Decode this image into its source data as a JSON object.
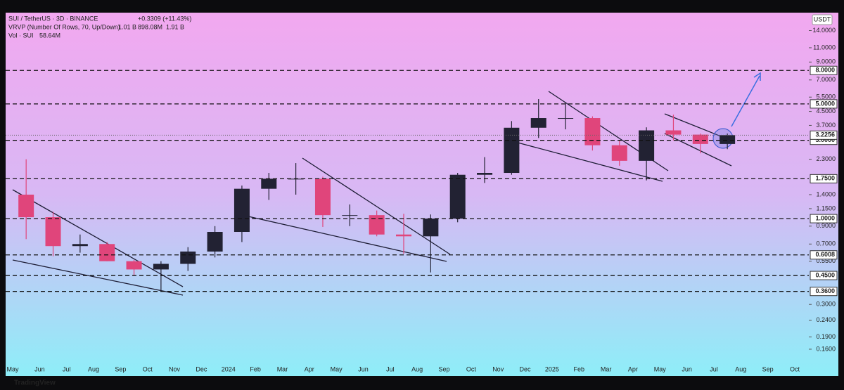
{
  "chart_data": {
    "type": "candlestick",
    "title": "SUI / TetherUS · 3D · BINANCE",
    "change": "+0.3309 (+11.43%)",
    "indicator": "VRVP (Number Of Rows, 70, Up/Down)",
    "indicator_values": [
      "1.01 B",
      "898.08M",
      "1.91 B"
    ],
    "volume_label": "Vol · SUI",
    "volume_value": "58.64M",
    "currency": "USDT",
    "footer": "TradingView",
    "log_scale": true,
    "up_color": "#222233",
    "down_color": "#e0457b",
    "categories": [
      "May",
      "Jun",
      "Jul",
      "Aug",
      "Sep",
      "Oct",
      "Nov",
      "Dec",
      "2024",
      "Feb",
      "Mar",
      "Apr",
      "May",
      "Jun",
      "Jul",
      "Aug",
      "Sep",
      "Oct",
      "Nov",
      "Dec",
      "2025",
      "Feb",
      "Mar",
      "Apr",
      "May",
      "Jun",
      "Jul",
      "Aug",
      "Sep",
      "Oct"
    ],
    "open": [
      1.4,
      1.02,
      0.68,
      0.7,
      0.55,
      0.49,
      0.53,
      0.63,
      0.83,
      1.52,
      1.75,
      1.75,
      1.05,
      1.05,
      0.8,
      0.78,
      1.0,
      1.85,
      1.9,
      3.58,
      4.1,
      4.1,
      2.8,
      2.25,
      3.45,
      3.25,
      2.85,
      null,
      null,
      null
    ],
    "high": [
      2.3,
      1.1,
      0.8,
      0.72,
      0.56,
      0.55,
      0.67,
      0.9,
      1.59,
      1.9,
      2.18,
      1.8,
      1.22,
      1.12,
      1.07,
      1.06,
      1.9,
      2.37,
      3.93,
      5.35,
      5.1,
      4.2,
      3.0,
      3.6,
      4.3,
      3.3,
      3.3,
      null,
      null,
      null
    ],
    "low": [
      0.75,
      0.59,
      0.62,
      0.55,
      0.45,
      0.36,
      0.48,
      0.58,
      0.72,
      1.3,
      1.4,
      0.89,
      0.9,
      0.78,
      0.61,
      0.47,
      0.95,
      1.65,
      1.85,
      3.1,
      3.5,
      2.6,
      2.1,
      1.71,
      3.0,
      2.5,
      2.65,
      null,
      null,
      null
    ],
    "close": [
      1.02,
      0.68,
      0.7,
      0.55,
      0.49,
      0.53,
      0.63,
      0.83,
      1.52,
      1.75,
      1.75,
      1.05,
      1.05,
      0.8,
      0.78,
      1.0,
      1.85,
      1.9,
      3.58,
      4.1,
      4.1,
      2.8,
      2.25,
      3.45,
      3.25,
      2.85,
      3.2256,
      null,
      null,
      null
    ],
    "ylim": [
      0.13,
      18
    ],
    "yticks": [
      {
        "value": 0.16,
        "label": "0.1600"
      },
      {
        "value": 0.19,
        "label": "0.1900"
      },
      {
        "value": 0.24,
        "label": "0.2400"
      },
      {
        "value": 0.3,
        "label": "0.3000"
      },
      {
        "value": 0.55,
        "label": "0.5500"
      },
      {
        "value": 0.7,
        "label": "0.7000"
      },
      {
        "value": 0.9,
        "label": "0.9000"
      },
      {
        "value": 1.15,
        "label": "1.1500"
      },
      {
        "value": 1.4,
        "label": "1.4000"
      },
      {
        "value": 2.3,
        "label": "2.3000"
      },
      {
        "value": 3.7,
        "label": "3.7000"
      },
      {
        "value": 4.5,
        "label": "4.5000"
      },
      {
        "value": 5.5,
        "label": "5.5000"
      },
      {
        "value": 7,
        "label": "7.0000"
      },
      {
        "value": 9,
        "label": "9.0000"
      },
      {
        "value": 11,
        "label": "11.0000"
      },
      {
        "value": 14,
        "label": "14.0000"
      }
    ],
    "levels": [
      {
        "value": 8,
        "label": "8.0000"
      },
      {
        "value": 5,
        "label": "5.0000"
      },
      {
        "value": 3,
        "label": "3.0000"
      },
      {
        "value": 1.75,
        "label": "1.7500"
      },
      {
        "value": 1,
        "label": "1.0000"
      },
      {
        "value": 0.6008,
        "label": "0.6008"
      },
      {
        "value": 0.45,
        "label": "0.4500"
      },
      {
        "value": 0.36,
        "label": "0.3600"
      }
    ],
    "last_price": {
      "value": 3.2256,
      "label": "3.2256"
    }
  }
}
